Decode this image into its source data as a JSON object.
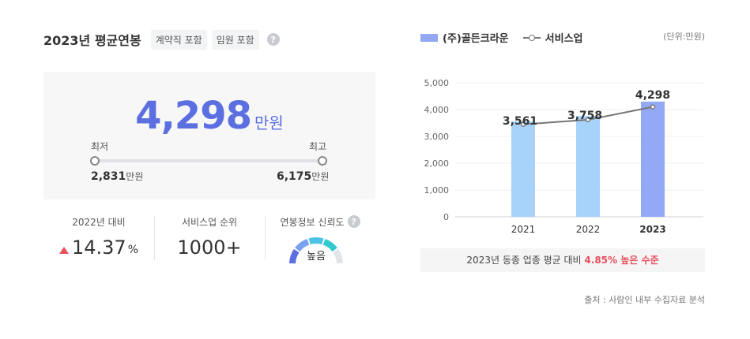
{
  "left": {
    "title": "2023년 평균연봉",
    "tags": [
      "계약직 포함",
      "임원 포함"
    ],
    "help_glyph": "?",
    "average": {
      "value": "4,298",
      "unit": "만원"
    },
    "range": {
      "min_label": "최저",
      "max_label": "최고",
      "min_value": "2,831",
      "max_value": "6,175",
      "unit": "만원"
    },
    "stats": {
      "yoy_label": "2022년 대비",
      "yoy_value": "14.37",
      "yoy_unit": "%",
      "rank_label": "서비스업 순위",
      "rank_value": "1000+",
      "trust_label": "연봉정보 신뢰도",
      "trust_value": "높음",
      "trust_level": 0.8
    }
  },
  "right": {
    "legend_bar": "(주)골든크라운",
    "legend_line": "서비스업",
    "unit_note": "(단위:만원)",
    "summary_prefix": "2023년 동종 업종 평균 대비",
    "summary_highlight": "4.85% 높은 수준",
    "source": "출처 : 사람인 내부 수집자료 분석"
  },
  "chart_data": {
    "type": "bar",
    "categories": [
      "2021",
      "2022",
      "2023"
    ],
    "series": [
      {
        "name": "(주)골든크라운",
        "type": "bar",
        "values": [
          3561,
          3758,
          4298
        ],
        "labels": [
          "3,561",
          "3,758",
          "4,298"
        ]
      },
      {
        "name": "서비스업",
        "type": "line",
        "values": [
          3450,
          3620,
          4100
        ]
      }
    ],
    "yticks": [
      0,
      1000,
      2000,
      3000,
      4000,
      5000
    ],
    "ytick_labels": [
      "0",
      "1,000",
      "2,000",
      "3,000",
      "4,000",
      "5,000"
    ],
    "ylim": [
      0,
      5000
    ],
    "grid": true,
    "colors": {
      "bar": "#a7d3fb",
      "bar_highlight": "#93a9f5",
      "line": "#777777"
    }
  },
  "colors": {
    "accent": "#5b6fe0",
    "up": "#e8505b"
  }
}
